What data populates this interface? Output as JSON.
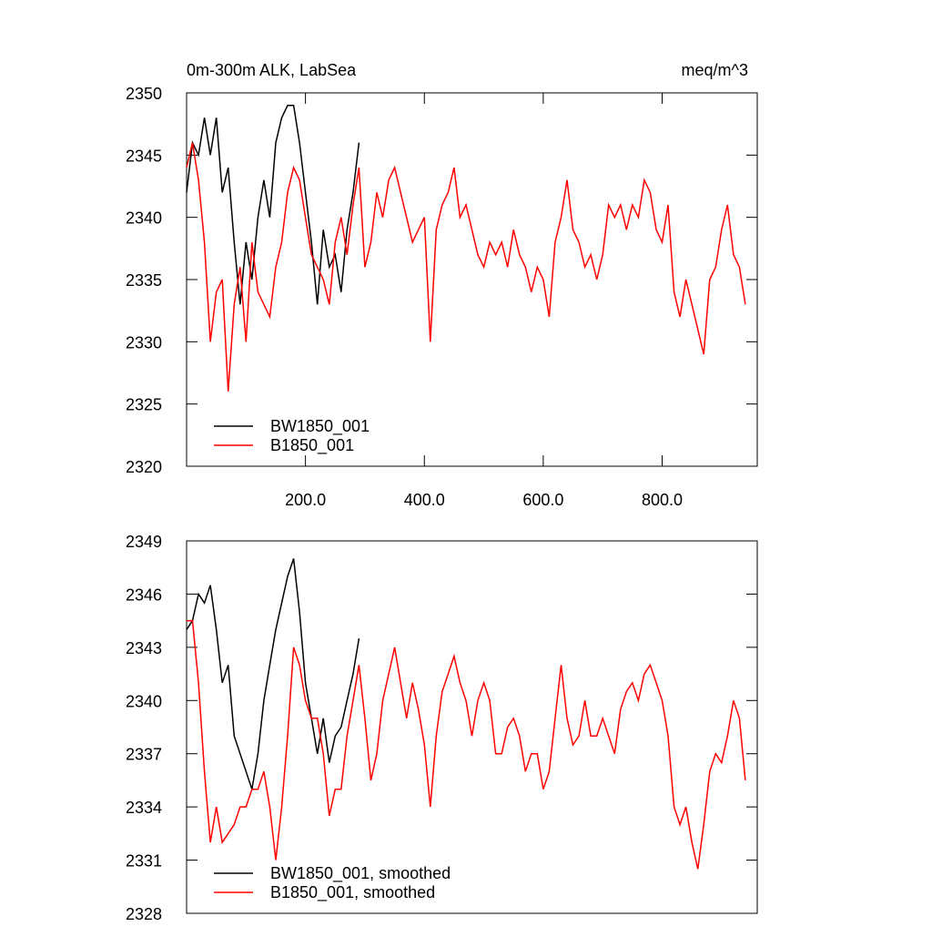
{
  "chart_data": [
    {
      "type": "line",
      "title": "0m-300m ALK, LabSea",
      "units": "meq/m^3",
      "xlim": [
        0,
        960
      ],
      "ylim": [
        2320,
        2350
      ],
      "xticks": [
        {
          "value": 200,
          "label": "200.0"
        },
        {
          "value": 400,
          "label": "400.0"
        },
        {
          "value": 600,
          "label": "600.0"
        },
        {
          "value": 800,
          "label": "800.0"
        }
      ],
      "yticks": [
        2320,
        2325,
        2330,
        2335,
        2340,
        2345,
        2350
      ],
      "series": [
        {
          "name": "BW1850_001",
          "color": "#000000",
          "x": [
            0,
            10,
            20,
            30,
            40,
            50,
            60,
            70,
            80,
            90,
            100,
            110,
            120,
            130,
            140,
            150,
            160,
            170,
            180,
            190,
            200,
            210,
            220,
            230,
            240,
            250,
            260,
            270,
            280,
            290
          ],
          "values": [
            2342,
            2346,
            2345,
            2348,
            2345,
            2348,
            2342,
            2344,
            2338,
            2333,
            2338,
            2335,
            2340,
            2343,
            2340,
            2346,
            2348,
            2349,
            2349,
            2346,
            2342,
            2338,
            2333,
            2339,
            2336,
            2337,
            2334,
            2339,
            2342,
            2346
          ]
        },
        {
          "name": "B1850_001",
          "color": "#ff0000",
          "x": [
            0,
            10,
            20,
            30,
            40,
            50,
            60,
            70,
            80,
            90,
            100,
            110,
            120,
            130,
            140,
            150,
            160,
            170,
            180,
            190,
            200,
            210,
            220,
            230,
            240,
            250,
            260,
            270,
            280,
            290,
            300,
            310,
            320,
            330,
            340,
            350,
            360,
            370,
            380,
            390,
            400,
            410,
            420,
            430,
            440,
            450,
            460,
            470,
            480,
            490,
            500,
            510,
            520,
            530,
            540,
            550,
            560,
            570,
            580,
            590,
            600,
            610,
            620,
            630,
            640,
            650,
            660,
            670,
            680,
            690,
            700,
            710,
            720,
            730,
            740,
            750,
            760,
            770,
            780,
            790,
            800,
            810,
            820,
            830,
            840,
            850,
            860,
            870,
            880,
            890,
            900,
            910,
            920,
            930,
            940
          ],
          "values": [
            2344,
            2346,
            2343,
            2338,
            2330,
            2334,
            2335,
            2326,
            2333,
            2336,
            2330,
            2338,
            2334,
            2333,
            2332,
            2336,
            2338,
            2342,
            2344,
            2343,
            2340,
            2337,
            2336,
            2335,
            2333,
            2338,
            2340,
            2337,
            2341,
            2344,
            2336,
            2338,
            2342,
            2340,
            2343,
            2344,
            2342,
            2340,
            2338,
            2339,
            2340,
            2330,
            2339,
            2341,
            2342,
            2344,
            2340,
            2341,
            2339,
            2337,
            2336,
            2338,
            2337,
            2338,
            2336,
            2339,
            2337,
            2336,
            2334,
            2336,
            2335,
            2332,
            2338,
            2340,
            2343,
            2339,
            2338,
            2336,
            2337,
            2335,
            2337,
            2341,
            2340,
            2341,
            2339,
            2341,
            2340,
            2343,
            2342,
            2339,
            2338,
            2341,
            2334,
            2332,
            2335,
            2333,
            2331,
            2329,
            2335,
            2336,
            2339,
            2341,
            2337,
            2336,
            2333
          ]
        }
      ]
    },
    {
      "type": "line",
      "xlim": [
        0,
        960
      ],
      "ylim": [
        2328,
        2349
      ],
      "yticks": [
        2328,
        2331,
        2334,
        2337,
        2340,
        2343,
        2346,
        2349
      ],
      "series": [
        {
          "name": "BW1850_001, smoothed",
          "color": "#000000",
          "x": [
            0,
            10,
            20,
            30,
            40,
            50,
            60,
            70,
            80,
            90,
            100,
            110,
            120,
            130,
            140,
            150,
            160,
            170,
            180,
            190,
            200,
            210,
            220,
            230,
            240,
            250,
            260,
            270,
            280,
            290
          ],
          "values": [
            2344,
            2344.5,
            2346,
            2345.5,
            2346.5,
            2344,
            2341,
            2342,
            2338,
            2337,
            2336,
            2335,
            2337,
            2340,
            2342,
            2344,
            2345.5,
            2347,
            2348,
            2345,
            2341,
            2339,
            2337,
            2339,
            2336.5,
            2338,
            2338.5,
            2340,
            2341.5,
            2343.5
          ]
        },
        {
          "name": "B1850_001, smoothed",
          "color": "#ff0000",
          "x": [
            0,
            10,
            20,
            30,
            40,
            50,
            60,
            70,
            80,
            90,
            100,
            110,
            120,
            130,
            140,
            150,
            160,
            170,
            180,
            190,
            200,
            210,
            220,
            230,
            240,
            250,
            260,
            270,
            280,
            290,
            300,
            310,
            320,
            330,
            340,
            350,
            360,
            370,
            380,
            390,
            400,
            410,
            420,
            430,
            440,
            450,
            460,
            470,
            480,
            490,
            500,
            510,
            520,
            530,
            540,
            550,
            560,
            570,
            580,
            590,
            600,
            610,
            620,
            630,
            640,
            650,
            660,
            670,
            680,
            690,
            700,
            710,
            720,
            730,
            740,
            750,
            760,
            770,
            780,
            790,
            800,
            810,
            820,
            830,
            840,
            850,
            860,
            870,
            880,
            890,
            900,
            910,
            920,
            930,
            940
          ],
          "values": [
            2344.5,
            2344.5,
            2341,
            2336,
            2332,
            2334,
            2332,
            2332.5,
            2333,
            2334,
            2334,
            2335,
            2335,
            2336,
            2334,
            2331,
            2334,
            2338,
            2343,
            2342,
            2340,
            2339,
            2339,
            2337,
            2333.5,
            2335,
            2335,
            2338,
            2340,
            2342,
            2339,
            2335.5,
            2337,
            2340,
            2341.5,
            2343,
            2341,
            2339,
            2341,
            2339.5,
            2337.5,
            2334,
            2338,
            2340.5,
            2341.5,
            2342.5,
            2341,
            2340,
            2338,
            2340,
            2341,
            2340,
            2337,
            2337,
            2338.5,
            2339,
            2338,
            2336,
            2337,
            2337,
            2335,
            2336,
            2339,
            2342,
            2339,
            2337.5,
            2338,
            2340,
            2338,
            2338,
            2339,
            2338,
            2337,
            2339.5,
            2340.5,
            2341,
            2340,
            2341.5,
            2342,
            2341,
            2340,
            2338,
            2334,
            2333,
            2334,
            2332,
            2330.5,
            2333,
            2336,
            2337,
            2336.5,
            2338,
            2340,
            2339,
            2335.5
          ]
        }
      ]
    }
  ]
}
